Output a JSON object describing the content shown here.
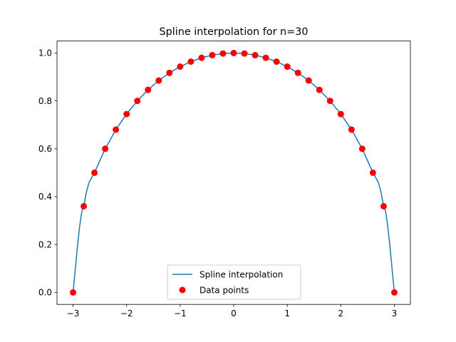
{
  "chart_data": {
    "type": "line",
    "title": "Spline interpolation for n=30",
    "xlabel": "",
    "ylabel": "",
    "xlim": [
      -3.3,
      3.3
    ],
    "ylim": [
      -0.05,
      1.05
    ],
    "x_ticks": [
      -3,
      -2,
      -1,
      0,
      1,
      2,
      3
    ],
    "x_tick_labels": [
      "−3",
      "−2",
      "−1",
      "0",
      "1",
      "2",
      "3"
    ],
    "y_ticks": [
      0.0,
      0.2,
      0.4,
      0.6,
      0.8,
      1.0
    ],
    "y_tick_labels": [
      "0.0",
      "0.2",
      "0.4",
      "0.6",
      "0.8",
      "1.0"
    ],
    "grid": false,
    "legend": {
      "placement": "lower-center",
      "entries": [
        "Spline interpolation",
        "Data points"
      ]
    },
    "series": [
      {
        "name": "Spline interpolation",
        "kind": "line",
        "color": "#1f77b4",
        "x": [
          -3.0,
          -2.97,
          -2.94,
          -2.91,
          -2.88,
          -2.85,
          -2.82,
          -2.8,
          -2.75,
          -2.7,
          -2.65,
          -2.6,
          -2.5,
          -2.4,
          -2.3,
          -2.2,
          -2.0,
          -1.8,
          -1.6,
          -1.4,
          -1.2,
          -1.0,
          -0.8,
          -0.6,
          -0.4,
          -0.2,
          0.0,
          0.2,
          0.4,
          0.6,
          0.8,
          1.0,
          1.2,
          1.4,
          1.6,
          1.8,
          2.0,
          2.2,
          2.3,
          2.4,
          2.5,
          2.6,
          2.65,
          2.7,
          2.75,
          2.8,
          2.82,
          2.85,
          2.88,
          2.91,
          2.94,
          2.97,
          3.0
        ],
        "y": [
          0.0,
          0.07,
          0.14,
          0.21,
          0.27,
          0.32,
          0.355,
          0.36,
          0.42,
          0.46,
          0.48,
          0.5,
          0.55,
          0.6,
          0.64,
          0.68,
          0.745,
          0.8,
          0.846,
          0.885,
          0.917,
          0.943,
          0.964,
          0.98,
          0.991,
          0.998,
          1.0,
          0.998,
          0.991,
          0.98,
          0.964,
          0.943,
          0.917,
          0.885,
          0.846,
          0.8,
          0.745,
          0.68,
          0.64,
          0.6,
          0.55,
          0.5,
          0.48,
          0.46,
          0.42,
          0.36,
          0.355,
          0.32,
          0.27,
          0.21,
          0.14,
          0.07,
          0.0
        ]
      },
      {
        "name": "Data points",
        "kind": "scatter",
        "color": "#ff0000",
        "x": [
          -3.0,
          -2.8,
          -2.6,
          -2.4,
          -2.2,
          -2.0,
          -1.8,
          -1.6,
          -1.4,
          -1.2,
          -1.0,
          -0.8,
          -0.6,
          -0.4,
          -0.2,
          0.0,
          0.2,
          0.4,
          0.6,
          0.8,
          1.0,
          1.2,
          1.4,
          1.6,
          1.8,
          2.0,
          2.2,
          2.4,
          2.6,
          2.8,
          3.0
        ],
        "y": [
          0.0,
          0.36,
          0.5,
          0.6,
          0.68,
          0.745,
          0.8,
          0.846,
          0.885,
          0.917,
          0.943,
          0.964,
          0.98,
          0.991,
          0.998,
          1.0,
          0.998,
          0.991,
          0.98,
          0.964,
          0.943,
          0.917,
          0.885,
          0.846,
          0.8,
          0.745,
          0.68,
          0.6,
          0.5,
          0.36,
          0.0
        ]
      }
    ]
  }
}
